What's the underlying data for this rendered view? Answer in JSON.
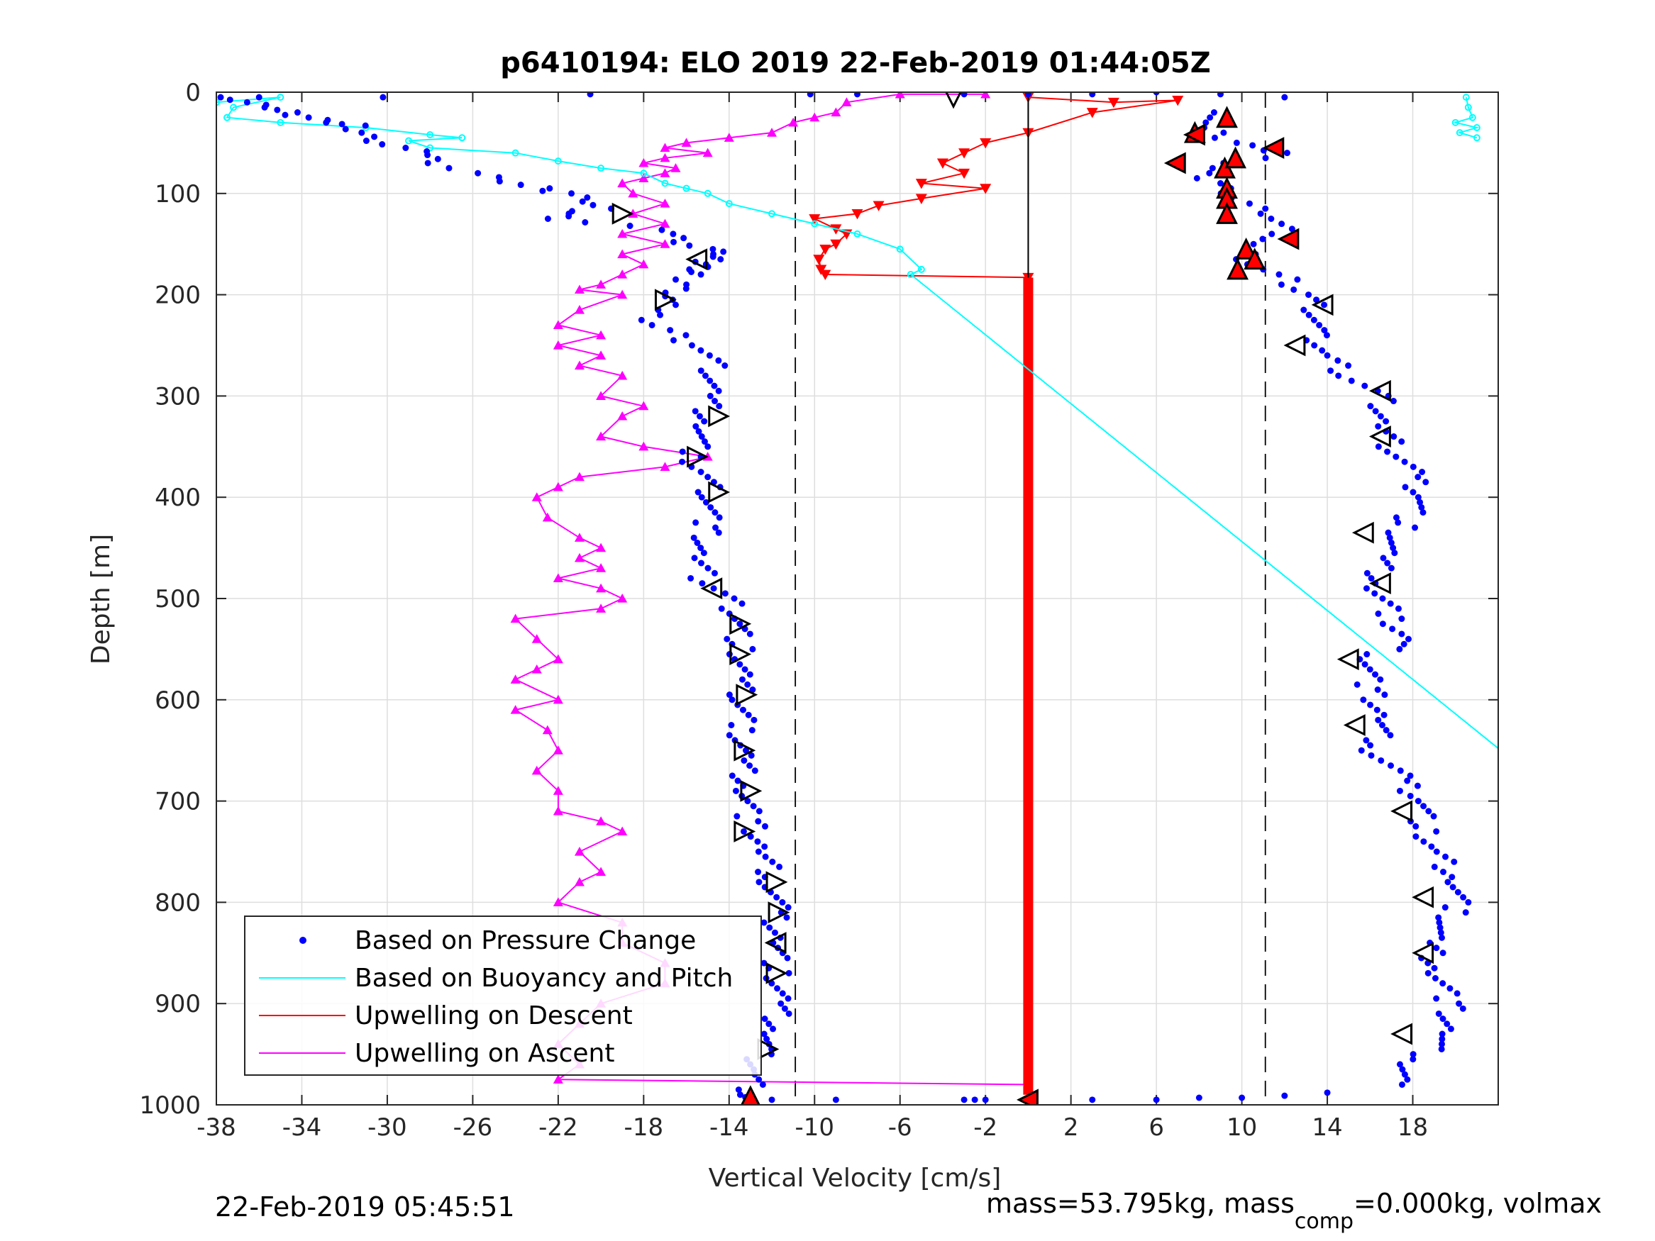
{
  "chart_data": {
    "type": "scatter",
    "title": "p6410194: ELO 2019 22-Feb-2019 01:44:05Z",
    "xlabel": "Vertical Velocity [cm/s]",
    "ylabel": "Depth [m]",
    "xlim": [
      -38,
      22
    ],
    "ylim": [
      1000,
      0
    ],
    "y_reversed": true,
    "grid": true,
    "legend_position": "bottom-left",
    "xticks": [
      "-38",
      "-34",
      "-30",
      "-26",
      "-22",
      "-18",
      "-14",
      "-10",
      "-6",
      "-2",
      "2",
      "6",
      "10",
      "14",
      "18"
    ],
    "yticks": [
      "0",
      "100",
      "200",
      "300",
      "400",
      "500",
      "600",
      "700",
      "800",
      "900",
      "1000"
    ],
    "reference_lines": [
      {
        "x": -10.9,
        "style": "dashed"
      },
      {
        "x": 11.1,
        "style": "dashed"
      },
      {
        "x": 0,
        "style": "solid",
        "from_depth": 0,
        "to_depth": 1000
      }
    ],
    "colors": {
      "pressure": "#0000ff",
      "buoyancy": "#00ffff",
      "descent": "#ff0000",
      "ascent": "#ff00ff"
    },
    "legend": [
      {
        "label": "Based on Pressure Change",
        "key": "pressure"
      },
      {
        "label": "Based on Buoyancy and Pitch",
        "key": "buoyancy"
      },
      {
        "label": "Upwelling on Descent",
        "key": "descent"
      },
      {
        "label": "Upwelling on Ascent",
        "key": "ascent"
      }
    ],
    "series": {
      "pressure_left": [
        [
          -37.2,
          5
        ],
        [
          -36.8,
          10
        ],
        [
          -35.5,
          15
        ],
        [
          -34.8,
          20
        ],
        [
          -33.8,
          25
        ],
        [
          -32.5,
          30
        ],
        [
          -31.5,
          33
        ],
        [
          -31.2,
          40
        ],
        [
          -30.5,
          48
        ],
        [
          -29.5,
          55
        ],
        [
          -28,
          62
        ],
        [
          -27.5,
          70
        ],
        [
          -26,
          80
        ],
        [
          -24.5,
          88
        ],
        [
          -23,
          95
        ],
        [
          -21.5,
          100
        ],
        [
          -20.5,
          108
        ],
        [
          -20,
          115
        ],
        [
          -21.5,
          120
        ],
        [
          -22,
          125
        ],
        [
          -19,
          132
        ],
        [
          -16.5,
          140
        ],
        [
          -16,
          148
        ],
        [
          -15,
          155
        ],
        [
          -14.5,
          160
        ],
        [
          -15,
          165
        ],
        [
          -15.2,
          170
        ],
        [
          -15.5,
          175
        ],
        [
          -15.8,
          180
        ],
        [
          -16,
          190
        ],
        [
          -16.5,
          198
        ],
        [
          -17,
          205
        ],
        [
          -17.2,
          215
        ],
        [
          -17.5,
          225
        ],
        [
          -17,
          235
        ],
        [
          -15.5,
          250
        ],
        [
          -14.8,
          270
        ],
        [
          -15,
          300
        ],
        [
          -15.2,
          330
        ],
        [
          -15.8,
          360
        ],
        [
          -15,
          380
        ],
        [
          -14.8,
          400
        ],
        [
          -15,
          430
        ],
        [
          -15.5,
          460
        ],
        [
          -15.2,
          480
        ],
        [
          -14,
          500
        ],
        [
          -13.5,
          520
        ],
        [
          -13.5,
          550
        ],
        [
          -13.5,
          580
        ],
        [
          -13.5,
          600
        ],
        [
          -13.4,
          630
        ],
        [
          -13.3,
          660
        ],
        [
          -13.2,
          690
        ],
        [
          -13,
          720
        ],
        [
          -12.5,
          750
        ],
        [
          -12,
          780
        ],
        [
          -11.8,
          810
        ],
        [
          -11.7,
          840
        ],
        [
          -11.8,
          870
        ],
        [
          -11.7,
          900
        ],
        [
          -12,
          930
        ],
        [
          -12.5,
          950
        ],
        [
          -12.8,
          970
        ],
        [
          -13,
          990
        ],
        [
          -13,
          995
        ]
      ],
      "pressure_right": [
        [
          9.3,
          20
        ],
        [
          8,
          35
        ],
        [
          10,
          50
        ],
        [
          11,
          55
        ],
        [
          12,
          60
        ],
        [
          9.5,
          70
        ],
        [
          8,
          80
        ],
        [
          9,
          90
        ],
        [
          9.5,
          100
        ],
        [
          10,
          110
        ],
        [
          11,
          120
        ],
        [
          12,
          140
        ],
        [
          10,
          155
        ],
        [
          10.5,
          170
        ],
        [
          12,
          185
        ],
        [
          13,
          200
        ],
        [
          13.5,
          220
        ],
        [
          13.5,
          240
        ],
        [
          14,
          260
        ],
        [
          15,
          280
        ],
        [
          16.5,
          300
        ],
        [
          16.5,
          330
        ],
        [
          17,
          350
        ],
        [
          18,
          380
        ],
        [
          18.5,
          400
        ],
        [
          17.5,
          430
        ],
        [
          16.5,
          460
        ],
        [
          16.2,
          490
        ],
        [
          17,
          520
        ],
        [
          17.8,
          540
        ],
        [
          16,
          560
        ],
        [
          16,
          590
        ],
        [
          16.5,
          620
        ],
        [
          16.2,
          650
        ],
        [
          17.5,
          680
        ],
        [
          18.5,
          700
        ],
        [
          18.5,
          730
        ],
        [
          19,
          750
        ],
        [
          20,
          780
        ],
        [
          20,
          810
        ],
        [
          18.8,
          840
        ],
        [
          19.2,
          870
        ],
        [
          19.8,
          900
        ],
        [
          19.5,
          930
        ],
        [
          18,
          960
        ],
        [
          17.5,
          980
        ]
      ],
      "pressure_scatter_top": [
        [
          -36,
          5
        ],
        [
          -30.2,
          5
        ],
        [
          -20.5,
          2
        ],
        [
          -10.2,
          2
        ],
        [
          -8,
          2
        ],
        [
          -3,
          2
        ],
        [
          0,
          2
        ],
        [
          3,
          2
        ],
        [
          6,
          0
        ],
        [
          9,
          2
        ],
        [
          12,
          5
        ]
      ],
      "pressure_scatter_bottom": [
        [
          -12,
          995
        ],
        [
          -9,
          995
        ],
        [
          -3,
          995
        ],
        [
          -2.5,
          995
        ],
        [
          -2,
          995
        ],
        [
          3,
          995
        ],
        [
          6,
          995
        ],
        [
          8,
          993
        ],
        [
          10,
          993
        ],
        [
          12,
          991
        ],
        [
          14,
          988
        ]
      ],
      "buoyancy": [
        [
          -38,
          10
        ],
        [
          -35,
          5
        ],
        [
          -37.2,
          15
        ],
        [
          -37.5,
          25
        ],
        [
          -35,
          30
        ],
        [
          -31,
          35
        ],
        [
          -28,
          42
        ],
        [
          -26.5,
          45
        ],
        [
          -29,
          48
        ],
        [
          -28,
          55
        ],
        [
          -24,
          60
        ],
        [
          -22,
          68
        ],
        [
          -20,
          75
        ],
        [
          -18,
          80
        ],
        [
          -17,
          90
        ],
        [
          -16,
          95
        ],
        [
          -15,
          100
        ],
        [
          -14,
          110
        ],
        [
          -12,
          120
        ],
        [
          -10,
          130
        ],
        [
          -8,
          140
        ],
        [
          -6,
          155
        ],
        [
          -5,
          175
        ],
        [
          -5.5,
          180
        ],
        [
          22,
          648
        ]
      ],
      "buoyancy_top_right": [
        [
          20.5,
          5
        ],
        [
          20.6,
          15
        ],
        [
          20.8,
          25
        ],
        [
          20,
          30
        ],
        [
          21,
          35
        ],
        [
          20.2,
          40
        ],
        [
          21,
          45
        ]
      ],
      "descent": [
        [
          0,
          5
        ],
        [
          4,
          10
        ],
        [
          7,
          8
        ],
        [
          3,
          20
        ],
        [
          0,
          40
        ],
        [
          -2,
          50
        ],
        [
          -3,
          60
        ],
        [
          -4,
          70
        ],
        [
          -3,
          80
        ],
        [
          -5,
          90
        ],
        [
          -2,
          95
        ],
        [
          -5,
          105
        ],
        [
          -7,
          112
        ],
        [
          -8,
          120
        ],
        [
          -10,
          125
        ],
        [
          -9,
          135
        ],
        [
          -8.5,
          140
        ],
        [
          -9,
          150
        ],
        [
          -9.5,
          155
        ],
        [
          -9.8,
          165
        ],
        [
          -9.7,
          175
        ],
        [
          -9.5,
          180
        ],
        [
          0,
          183
        ]
      ],
      "descent_vertical": [
        [
          0,
          183
        ],
        [
          0,
          990
        ]
      ],
      "ascent": [
        [
          -2,
          2
        ],
        [
          -6,
          2
        ],
        [
          -8.5,
          10
        ],
        [
          -9,
          20
        ],
        [
          -10,
          25
        ],
        [
          -11,
          30
        ],
        [
          -12,
          40
        ],
        [
          -14,
          45
        ],
        [
          -16,
          50
        ],
        [
          -17,
          55
        ],
        [
          -15,
          60
        ],
        [
          -17,
          65
        ],
        [
          -18,
          70
        ],
        [
          -16.5,
          75
        ],
        [
          -17,
          80
        ],
        [
          -18,
          85
        ],
        [
          -19,
          90
        ],
        [
          -18.5,
          100
        ],
        [
          -17,
          110
        ],
        [
          -18.5,
          120
        ],
        [
          -17,
          130
        ],
        [
          -19,
          140
        ],
        [
          -17,
          150
        ],
        [
          -19,
          160
        ],
        [
          -18,
          170
        ],
        [
          -19,
          180
        ],
        [
          -20,
          190
        ],
        [
          -21,
          195
        ],
        [
          -19,
          200
        ],
        [
          -21,
          215
        ],
        [
          -22,
          230
        ],
        [
          -20,
          240
        ],
        [
          -22,
          250
        ],
        [
          -20,
          260
        ],
        [
          -21,
          270
        ],
        [
          -19,
          280
        ],
        [
          -20,
          300
        ],
        [
          -18,
          310
        ],
        [
          -19,
          320
        ],
        [
          -20,
          340
        ],
        [
          -18,
          350
        ],
        [
          -15,
          360
        ],
        [
          -17,
          370
        ],
        [
          -21,
          380
        ],
        [
          -22,
          390
        ],
        [
          -23,
          400
        ],
        [
          -22.5,
          420
        ],
        [
          -21,
          440
        ],
        [
          -20,
          450
        ],
        [
          -21,
          460
        ],
        [
          -20,
          470
        ],
        [
          -22,
          480
        ],
        [
          -20,
          490
        ],
        [
          -19,
          500
        ],
        [
          -20,
          510
        ],
        [
          -24,
          520
        ],
        [
          -23,
          540
        ],
        [
          -22,
          560
        ],
        [
          -23,
          570
        ],
        [
          -24,
          580
        ],
        [
          -22,
          600
        ],
        [
          -24,
          610
        ],
        [
          -22.5,
          630
        ],
        [
          -22,
          650
        ],
        [
          -23,
          670
        ],
        [
          -22,
          690
        ],
        [
          -22,
          710
        ],
        [
          -20,
          720
        ],
        [
          -19,
          730
        ],
        [
          -21,
          750
        ],
        [
          -20,
          770
        ],
        [
          -21,
          780
        ],
        [
          -22,
          800
        ],
        [
          -19,
          820
        ],
        [
          -19,
          840
        ],
        [
          -17,
          860
        ],
        [
          -17,
          880
        ],
        [
          -20,
          900
        ],
        [
          -21,
          920
        ],
        [
          -22,
          940
        ],
        [
          -21,
          960
        ],
        [
          -22,
          975
        ],
        [
          0,
          980
        ]
      ],
      "arrows_left_column": [
        [
          -19,
          120,
          "right"
        ],
        [
          -15.5,
          165,
          "left"
        ],
        [
          -17,
          205,
          "right"
        ],
        [
          -14.5,
          320,
          "right"
        ],
        [
          -15.5,
          360,
          "right"
        ],
        [
          -14.5,
          395,
          "right"
        ],
        [
          -14.8,
          490,
          "left"
        ],
        [
          -13.5,
          525,
          "right"
        ],
        [
          -13.5,
          555,
          "right"
        ],
        [
          -13.2,
          595,
          "right"
        ],
        [
          -13.3,
          650,
          "right"
        ],
        [
          -13,
          690,
          "right"
        ],
        [
          -13.3,
          730,
          "right"
        ],
        [
          -11.8,
          780,
          "right"
        ],
        [
          -11.7,
          810,
          "right"
        ],
        [
          -11.8,
          840,
          "left"
        ],
        [
          -11.8,
          870,
          "right"
        ],
        [
          -12.2,
          945,
          "right"
        ],
        [
          -3.5,
          5,
          "down"
        ],
        [
          0,
          995,
          "left"
        ],
        [
          -13,
          992,
          "up"
        ]
      ],
      "arrows_right_column": [
        [
          9.3,
          25,
          "up"
        ],
        [
          7.8,
          40,
          "up"
        ],
        [
          7.8,
          42,
          "left"
        ],
        [
          6.9,
          70,
          "left"
        ],
        [
          9.2,
          75,
          "up"
        ],
        [
          9.7,
          65,
          "up"
        ],
        [
          9.3,
          95,
          "up"
        ],
        [
          9.3,
          105,
          "up"
        ],
        [
          9.3,
          120,
          "up"
        ],
        [
          11.5,
          55,
          "left"
        ],
        [
          12.2,
          145,
          "left"
        ],
        [
          10.2,
          155,
          "up"
        ],
        [
          10.6,
          165,
          "up"
        ],
        [
          9.8,
          175,
          "up"
        ],
        [
          13.8,
          210,
          "left"
        ],
        [
          12.5,
          250,
          "left"
        ],
        [
          16.5,
          295,
          "left"
        ],
        [
          16.5,
          340,
          "left"
        ],
        [
          15.7,
          435,
          "left"
        ],
        [
          16.5,
          485,
          "left"
        ],
        [
          15,
          560,
          "left"
        ],
        [
          15.3,
          625,
          "left"
        ],
        [
          17.5,
          710,
          "left"
        ],
        [
          18.5,
          795,
          "left"
        ],
        [
          18.5,
          850,
          "left"
        ],
        [
          17.5,
          930,
          "left"
        ]
      ]
    }
  },
  "footer": {
    "timestamp": "22-Feb-2019 05:45:51",
    "mass_label_pre": "mass=53.795kg, mass",
    "mass_label_sub": "comp",
    "mass_label_post": "=0.000kg, volmax"
  }
}
